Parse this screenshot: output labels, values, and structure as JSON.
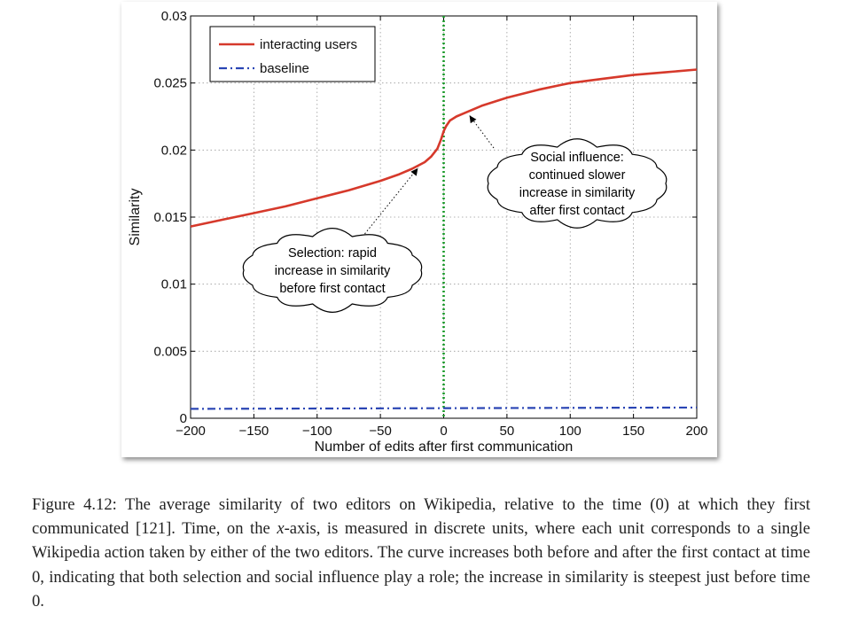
{
  "chart_data": {
    "type": "line",
    "title": "",
    "xlabel": "Number of edits after first communication",
    "ylabel": "Similarity",
    "xlim": [
      -200,
      200
    ],
    "ylim": [
      0,
      0.03
    ],
    "xticks": [
      -200,
      -150,
      -100,
      -50,
      0,
      50,
      100,
      150,
      200
    ],
    "xtick_labels": [
      "−200",
      "−150",
      "−100",
      "−50",
      "0",
      "50",
      "100",
      "150",
      "200"
    ],
    "yticks": [
      0,
      0.005,
      0.01,
      0.015,
      0.02,
      0.025,
      0.03
    ],
    "ytick_labels": [
      "0",
      "0.005",
      "0.01",
      "0.015",
      "0.02",
      "0.025",
      "0.03"
    ],
    "grid": true,
    "legend_position": "top-left",
    "vertical_line": {
      "x": 0,
      "style": "dotted",
      "color": "#1a9a2a"
    },
    "series": [
      {
        "name": "interacting users",
        "color": "#d6392b",
        "style": "solid",
        "x": [
          -200,
          -175,
          -150,
          -125,
          -100,
          -75,
          -50,
          -35,
          -25,
          -15,
          -10,
          -5,
          -2,
          0,
          2,
          5,
          10,
          20,
          30,
          50,
          75,
          100,
          125,
          150,
          175,
          200
        ],
        "y": [
          0.0143,
          0.0148,
          0.0153,
          0.0158,
          0.0164,
          0.017,
          0.0177,
          0.0182,
          0.0186,
          0.0191,
          0.0195,
          0.0201,
          0.0208,
          0.0214,
          0.0218,
          0.0222,
          0.0225,
          0.0229,
          0.0233,
          0.0239,
          0.0245,
          0.025,
          0.0253,
          0.0256,
          0.0258,
          0.026
        ]
      },
      {
        "name": "baseline",
        "color": "#2a45b4",
        "style": "dashdot",
        "x": [
          -200,
          200
        ],
        "y": [
          0.0007,
          0.0008
        ]
      }
    ],
    "annotations": [
      {
        "lines": [
          "Selection: rapid",
          "increase in similarity",
          "before first contact"
        ],
        "points_to": [
          -20,
          0.0191
        ]
      },
      {
        "lines": [
          "Social influence:",
          "continued slower",
          "increase in similarity",
          "after first contact"
        ],
        "points_to": [
          20,
          0.0229
        ]
      }
    ]
  },
  "caption": {
    "prefix": "Figure 4.12: The average similarity of two editors on Wikipedia, relative to the time (0) at which they first communicated [121]. Time, on the ",
    "math": "x",
    "suffix": "-axis, is measured in discrete units, where each unit corresponds to a single Wikipedia action taken by either of the two editors. The curve increases both before and after the first contact at time 0, indicating that both selection and social influence play a role; the increase in similarity is steepest just before time 0."
  }
}
